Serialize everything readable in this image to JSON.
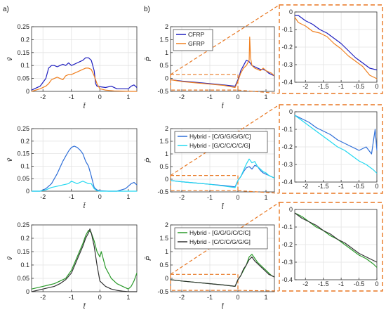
{
  "panel_labels": [
    "a)",
    "b)"
  ],
  "chart_data": [
    {
      "id": "a1",
      "type": "line",
      "ylabel": "v̄",
      "xlabel": "t̄",
      "xlim": [
        -2.4,
        1.3
      ],
      "ylim": [
        0,
        0.25
      ],
      "xticks": [
        -2,
        -1,
        0,
        1
      ],
      "yticks": [
        0,
        0.05,
        0.1,
        0.15,
        0.2,
        0.25
      ],
      "grid": true,
      "series": [
        {
          "color": "#1f1fbf",
          "x": [
            -2.4,
            -2.1,
            -1.9,
            -1.8,
            -1.7,
            -1.6,
            -1.5,
            -1.4,
            -1.3,
            -1.2,
            -1.1,
            -1.0,
            -0.9,
            -0.8,
            -0.7,
            -0.6,
            -0.5,
            -0.4,
            -0.3,
            -0.2,
            -0.15,
            -0.1,
            0.0,
            0.2,
            0.4,
            0.6,
            0.8,
            1.0,
            1.1,
            1.2,
            1.3
          ],
          "y": [
            0.005,
            0.02,
            0.05,
            0.09,
            0.1,
            0.1,
            0.095,
            0.1,
            0.105,
            0.1,
            0.11,
            0.1,
            0.105,
            0.11,
            0.115,
            0.12,
            0.13,
            0.13,
            0.12,
            0.08,
            0.03,
            0.02,
            0.018,
            0.015,
            0.02,
            0.01,
            0.01,
            0.01,
            0.02,
            0.025,
            0.015
          ]
        },
        {
          "color": "#f08020",
          "x": [
            -2.4,
            -2.1,
            -1.9,
            -1.8,
            -1.7,
            -1.6,
            -1.5,
            -1.4,
            -1.3,
            -1.2,
            -1.1,
            -1.0,
            -0.9,
            -0.8,
            -0.7,
            -0.6,
            -0.5,
            -0.4,
            -0.3,
            -0.2,
            -0.1,
            0.0,
            0.2,
            0.5,
            0.8,
            1.1,
            1.3
          ],
          "y": [
            0.0,
            0.01,
            0.02,
            0.03,
            0.045,
            0.05,
            0.055,
            0.05,
            0.045,
            0.06,
            0.065,
            0.065,
            0.07,
            0.075,
            0.08,
            0.085,
            0.09,
            0.09,
            0.085,
            0.06,
            0.03,
            0.01,
            0.005,
            0.002,
            0.001,
            0.0,
            0.0
          ]
        }
      ]
    },
    {
      "id": "a2",
      "type": "line",
      "ylabel": "v̄",
      "xlabel": "t̄",
      "xlim": [
        -2.4,
        1.3
      ],
      "ylim": [
        0,
        0.25
      ],
      "xticks": [
        -2,
        -1,
        0,
        1
      ],
      "yticks": [
        0,
        0.05,
        0.1,
        0.15,
        0.2,
        0.25
      ],
      "grid": true,
      "series": [
        {
          "color": "#2f6fd8",
          "x": [
            -2.4,
            -2.1,
            -1.9,
            -1.7,
            -1.5,
            -1.3,
            -1.2,
            -1.1,
            -1.0,
            -0.9,
            -0.8,
            -0.7,
            -0.6,
            -0.5,
            -0.4,
            -0.3,
            -0.2,
            -0.1,
            0.0,
            0.3,
            0.6,
            0.9,
            1.1,
            1.2,
            1.3
          ],
          "y": [
            0.0,
            0.0,
            0.01,
            0.03,
            0.07,
            0.12,
            0.14,
            0.16,
            0.175,
            0.18,
            0.175,
            0.165,
            0.15,
            0.12,
            0.1,
            0.06,
            0.015,
            0.005,
            0.002,
            0.0,
            0.0,
            0.01,
            0.03,
            0.035,
            0.025
          ]
        },
        {
          "color": "#22d8f0",
          "x": [
            -2.4,
            -2.1,
            -1.9,
            -1.7,
            -1.5,
            -1.3,
            -1.1,
            -1.0,
            -0.9,
            -0.8,
            -0.7,
            -0.6,
            -0.5,
            -0.4,
            -0.3,
            -0.2,
            -0.1,
            0.0,
            0.5,
            1.0,
            1.3
          ],
          "y": [
            0.0,
            0.0,
            0.005,
            0.015,
            0.02,
            0.025,
            0.03,
            0.04,
            0.035,
            0.03,
            0.035,
            0.04,
            0.035,
            0.03,
            0.03,
            0.01,
            0.002,
            0.0,
            0.0,
            0.0,
            0.0
          ]
        }
      ]
    },
    {
      "id": "a3",
      "type": "line",
      "ylabel": "v̄",
      "xlabel": "t̄",
      "xlim": [
        -2.4,
        1.3
      ],
      "ylim": [
        0,
        0.25
      ],
      "xticks": [
        -2,
        -1,
        0,
        1
      ],
      "yticks": [
        0,
        0.05,
        0.1,
        0.15,
        0.2,
        0.25
      ],
      "grid": true,
      "series": [
        {
          "color": "#2a9a2a",
          "x": [
            -2.4,
            -2.0,
            -1.8,
            -1.6,
            -1.4,
            -1.2,
            -1.0,
            -0.8,
            -0.6,
            -0.5,
            -0.4,
            -0.3,
            -0.2,
            -0.1,
            -0.05,
            0.0,
            0.05,
            0.1,
            0.2,
            0.4,
            0.6,
            0.8,
            1.0,
            1.1,
            1.2,
            1.3
          ],
          "y": [
            0.01,
            0.02,
            0.025,
            0.03,
            0.04,
            0.05,
            0.08,
            0.13,
            0.18,
            0.21,
            0.23,
            0.22,
            0.19,
            0.15,
            0.14,
            0.13,
            0.15,
            0.13,
            0.09,
            0.05,
            0.03,
            0.02,
            0.01,
            0.02,
            0.04,
            0.07
          ]
        },
        {
          "color": "#333333",
          "x": [
            -2.4,
            -2.0,
            -1.8,
            -1.6,
            -1.4,
            -1.2,
            -1.0,
            -0.8,
            -0.6,
            -0.5,
            -0.4,
            -0.35,
            -0.3,
            -0.2,
            -0.1,
            0.0,
            0.2,
            0.4,
            0.6,
            0.8,
            1.0,
            1.2,
            1.3
          ],
          "y": [
            0.0,
            0.01,
            0.015,
            0.02,
            0.03,
            0.045,
            0.07,
            0.12,
            0.17,
            0.2,
            0.22,
            0.235,
            0.22,
            0.17,
            0.1,
            0.04,
            0.02,
            0.01,
            0.005,
            0.002,
            0.0,
            0.0,
            0.0
          ]
        }
      ]
    },
    {
      "id": "b1",
      "type": "line",
      "ylabel": "P̄",
      "xlabel": "t̄",
      "xlim": [
        -2.4,
        1.3
      ],
      "ylim": [
        -0.5,
        2
      ],
      "xticks": [
        -2,
        -1,
        0,
        1
      ],
      "yticks": [
        -0.5,
        0,
        0.5,
        1,
        1.5,
        2
      ],
      "grid": true,
      "legend": "top-left",
      "series": [
        {
          "name": "CFRP",
          "color": "#1f1fbf",
          "x": [
            -2.4,
            -2.0,
            -1.5,
            -1.0,
            -0.5,
            -0.1,
            0.0,
            0.05,
            0.1,
            0.2,
            0.3,
            0.4,
            0.5,
            0.6,
            0.7,
            0.8,
            0.9,
            1.0,
            1.1,
            1.2,
            1.3
          ],
          "y": [
            -0.05,
            -0.1,
            -0.15,
            -0.2,
            -0.25,
            -0.3,
            -0.05,
            0.1,
            0.3,
            0.5,
            0.7,
            0.65,
            0.5,
            0.45,
            0.4,
            0.35,
            0.35,
            0.3,
            0.2,
            0.15,
            0.1
          ]
        },
        {
          "name": "GFRP",
          "color": "#f08020",
          "x": [
            -2.4,
            -2.0,
            -1.5,
            -1.0,
            -0.5,
            -0.1,
            0.0,
            0.05,
            0.1,
            0.2,
            0.3,
            0.4,
            0.42,
            0.45,
            0.5,
            0.6,
            0.7,
            0.8,
            0.9,
            1.0,
            1.1,
            1.2,
            1.3
          ],
          "y": [
            -0.05,
            -0.12,
            -0.17,
            -0.22,
            -0.27,
            -0.35,
            -0.1,
            0.05,
            0.2,
            0.4,
            0.5,
            0.7,
            1.6,
            0.8,
            0.5,
            0.4,
            0.35,
            0.3,
            0.4,
            0.3,
            0.25,
            0.2,
            0.1
          ]
        }
      ]
    },
    {
      "id": "b2",
      "type": "line",
      "ylabel": "P̄",
      "xlabel": "t̄",
      "xlim": [
        -2.4,
        1.3
      ],
      "ylim": [
        -0.5,
        2
      ],
      "xticks": [
        -2,
        -1,
        0,
        1
      ],
      "yticks": [
        -0.5,
        0,
        0.5,
        1,
        1.5,
        2
      ],
      "grid": true,
      "legend": "top-right",
      "series": [
        {
          "name": "Hybrid - [C/G/G/G/G/C]",
          "color": "#2f6fd8",
          "x": [
            -2.4,
            -2.0,
            -1.5,
            -1.0,
            -0.5,
            -0.1,
            0.0,
            0.1,
            0.2,
            0.3,
            0.4,
            0.5,
            0.6,
            0.7,
            0.8,
            0.9,
            1.0,
            1.1,
            1.2,
            1.3
          ],
          "y": [
            -0.05,
            -0.1,
            -0.15,
            -0.2,
            -0.25,
            -0.3,
            -0.05,
            0.1,
            0.3,
            0.45,
            0.5,
            0.4,
            0.55,
            0.5,
            0.35,
            0.25,
            0.2,
            0.15,
            0.1,
            0.05
          ]
        },
        {
          "name": "Hybrid - [G/C/C/C/C/G]",
          "color": "#22d8f0",
          "x": [
            -2.4,
            -2.0,
            -1.5,
            -1.0,
            -0.5,
            -0.1,
            0.0,
            0.1,
            0.2,
            0.3,
            0.4,
            0.5,
            0.6,
            0.7,
            0.8,
            0.9,
            1.0,
            1.1,
            1.2,
            1.3
          ],
          "y": [
            -0.05,
            -0.1,
            -0.15,
            -0.2,
            -0.27,
            -0.33,
            -0.05,
            0.1,
            0.35,
            0.6,
            0.8,
            0.65,
            0.7,
            0.5,
            0.4,
            0.3,
            0.25,
            0.15,
            0.1,
            0.05
          ]
        }
      ]
    },
    {
      "id": "b3",
      "type": "line",
      "ylabel": "P̄",
      "xlabel": "t̄",
      "xlim": [
        -2.4,
        1.3
      ],
      "ylim": [
        -0.5,
        2
      ],
      "xticks": [
        -2,
        -1,
        0,
        1
      ],
      "yticks": [
        -0.5,
        0,
        0.5,
        1,
        1.5,
        2
      ],
      "grid": true,
      "legend": "top-right",
      "series": [
        {
          "name": "Hybrid - [G/G/G/C/C/C]",
          "color": "#2a9a2a",
          "x": [
            -2.4,
            -2.0,
            -1.5,
            -1.0,
            -0.5,
            -0.1,
            0.0,
            0.1,
            0.2,
            0.3,
            0.4,
            0.5,
            0.6,
            0.7,
            0.8,
            0.9,
            1.0,
            1.1,
            1.2,
            1.3
          ],
          "y": [
            -0.05,
            -0.1,
            -0.15,
            -0.2,
            -0.25,
            -0.3,
            -0.05,
            0.1,
            0.3,
            0.5,
            0.8,
            0.9,
            0.75,
            0.6,
            0.5,
            0.4,
            0.3,
            0.2,
            0.1,
            0.05
          ]
        },
        {
          "name": "Hybrid - [C/C/C/G/G/G]",
          "color": "#333333",
          "x": [
            -2.4,
            -2.0,
            -1.5,
            -1.0,
            -0.5,
            -0.1,
            0.0,
            0.1,
            0.2,
            0.3,
            0.4,
            0.5,
            0.6,
            0.7,
            0.8,
            0.9,
            1.0,
            1.1,
            1.2,
            1.3
          ],
          "y": [
            -0.05,
            -0.1,
            -0.15,
            -0.2,
            -0.25,
            -0.3,
            -0.05,
            0.1,
            0.35,
            0.5,
            0.7,
            0.8,
            0.65,
            0.55,
            0.45,
            0.35,
            0.25,
            0.15,
            0.1,
            0.05
          ]
        }
      ]
    },
    {
      "id": "z1",
      "type": "line",
      "zoom_of": "b1",
      "xlim": [
        -2.3,
        0
      ],
      "ylim": [
        -0.4,
        0
      ],
      "xticks": [
        -2,
        -1.5,
        -1,
        -0.5,
        0
      ],
      "yticks": [
        -0.4,
        -0.3,
        -0.2,
        -0.1,
        0
      ],
      "grid": true,
      "series": [
        {
          "color": "#1f1fbf",
          "x": [
            -2.3,
            -2.2,
            -2.0,
            -1.8,
            -1.6,
            -1.4,
            -1.2,
            -1.0,
            -0.8,
            -0.6,
            -0.4,
            -0.2,
            0.0
          ],
          "y": [
            -0.02,
            -0.02,
            -0.05,
            -0.07,
            -0.1,
            -0.12,
            -0.15,
            -0.18,
            -0.22,
            -0.26,
            -0.29,
            -0.32,
            -0.33
          ]
        },
        {
          "color": "#f08020",
          "x": [
            -2.3,
            -2.2,
            -2.0,
            -1.8,
            -1.6,
            -1.4,
            -1.2,
            -1.0,
            -0.8,
            -0.6,
            -0.4,
            -0.2,
            0.0
          ],
          "y": [
            -0.03,
            -0.06,
            -0.08,
            -0.11,
            -0.12,
            -0.14,
            -0.18,
            -0.21,
            -0.25,
            -0.28,
            -0.31,
            -0.36,
            -0.38
          ]
        }
      ]
    },
    {
      "id": "z2",
      "type": "line",
      "zoom_of": "b2",
      "xlim": [
        -2.3,
        0
      ],
      "ylim": [
        -0.4,
        0
      ],
      "xticks": [
        -2,
        -1.5,
        -1,
        -0.5,
        0
      ],
      "yticks": [
        -0.4,
        -0.3,
        -0.2,
        -0.1,
        0
      ],
      "grid": true,
      "series": [
        {
          "color": "#2f6fd8",
          "x": [
            -2.3,
            -2.1,
            -1.9,
            -1.7,
            -1.5,
            -1.3,
            -1.1,
            -0.9,
            -0.7,
            -0.5,
            -0.3,
            -0.15,
            -0.05,
            0.0
          ],
          "y": [
            -0.02,
            -0.04,
            -0.06,
            -0.09,
            -0.11,
            -0.13,
            -0.16,
            -0.18,
            -0.2,
            -0.22,
            -0.2,
            -0.24,
            -0.1,
            -0.22
          ]
        },
        {
          "color": "#22d8f0",
          "x": [
            -2.3,
            -2.1,
            -1.9,
            -1.7,
            -1.5,
            -1.3,
            -1.1,
            -0.9,
            -0.7,
            -0.5,
            -0.3,
            -0.1,
            0.0
          ],
          "y": [
            -0.02,
            -0.05,
            -0.08,
            -0.11,
            -0.14,
            -0.17,
            -0.2,
            -0.22,
            -0.25,
            -0.28,
            -0.3,
            -0.33,
            -0.35
          ]
        }
      ]
    },
    {
      "id": "z3",
      "type": "line",
      "zoom_of": "b3",
      "xlim": [
        -2.3,
        0
      ],
      "ylim": [
        -0.4,
        0
      ],
      "xticks": [
        -2,
        -1.5,
        -1,
        -0.5,
        0
      ],
      "yticks": [
        -0.4,
        -0.3,
        -0.2,
        -0.1,
        0
      ],
      "grid": true,
      "series": [
        {
          "color": "#2a9a2a",
          "x": [
            -2.3,
            -2.1,
            -1.9,
            -1.7,
            -1.5,
            -1.3,
            -1.1,
            -0.9,
            -0.7,
            -0.5,
            -0.3,
            -0.1,
            0.0
          ],
          "y": [
            -0.02,
            -0.04,
            -0.07,
            -0.1,
            -0.12,
            -0.15,
            -0.17,
            -0.2,
            -0.23,
            -0.26,
            -0.28,
            -0.31,
            -0.33
          ]
        },
        {
          "color": "#333333",
          "x": [
            -2.3,
            -2.1,
            -1.9,
            -1.7,
            -1.5,
            -1.3,
            -1.1,
            -0.9,
            -0.7,
            -0.5,
            -0.3,
            -0.1,
            0.0
          ],
          "y": [
            -0.02,
            -0.05,
            -0.07,
            -0.09,
            -0.12,
            -0.14,
            -0.17,
            -0.19,
            -0.22,
            -0.25,
            -0.27,
            -0.29,
            -0.3
          ]
        }
      ]
    }
  ]
}
